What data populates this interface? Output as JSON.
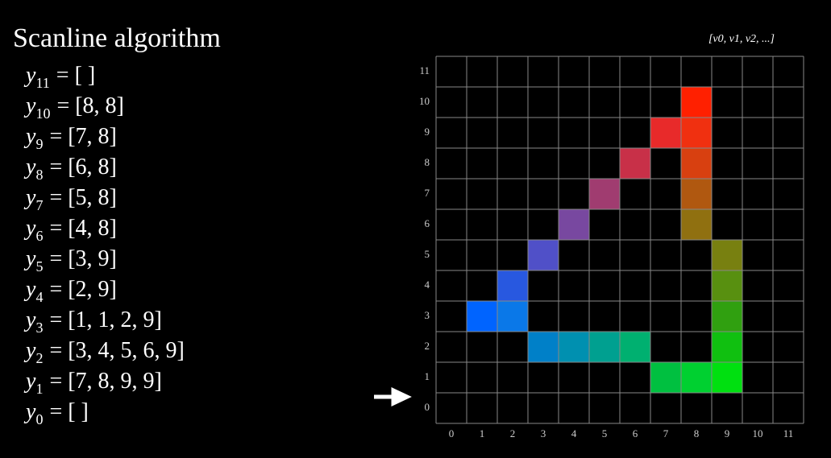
{
  "title": "Scanline algorithm",
  "legend": "[v0, v1, v2, ...]",
  "rows": [
    {
      "var": "y",
      "sub": "11",
      "rest": "= [    ]"
    },
    {
      "var": "y",
      "sub": "10",
      "rest": "= [8, 8]"
    },
    {
      "var": "y",
      "sub": "9",
      "rest": "= [7, 8]"
    },
    {
      "var": "y",
      "sub": "8",
      "rest": "= [6, 8]"
    },
    {
      "var": "y",
      "sub": "7",
      "rest": "= [5, 8]"
    },
    {
      "var": "y",
      "sub": "6",
      "rest": "= [4, 8]"
    },
    {
      "var": "y",
      "sub": "5",
      "rest": "= [3, 9]"
    },
    {
      "var": "y",
      "sub": "4",
      "rest": "= [2, 9]"
    },
    {
      "var": "y",
      "sub": "3",
      "rest": "= [1, 1, 2, 9]"
    },
    {
      "var": "y",
      "sub": "2",
      "rest": "= [3, 4, 5, 6, 9]"
    },
    {
      "var": "y",
      "sub": "1",
      "rest": "= [7, 8, 9, 9]"
    },
    {
      "var": "y",
      "sub": "0",
      "rest": "= [    ]"
    }
  ],
  "grid": {
    "x_labels": [
      "0",
      "1",
      "2",
      "3",
      "4",
      "5",
      "6",
      "7",
      "8",
      "9",
      "10",
      "11"
    ],
    "y_labels": [
      "11",
      "10",
      "9",
      "8",
      "7",
      "6",
      "5",
      "4",
      "3",
      "2",
      "1",
      "0"
    ]
  }
}
